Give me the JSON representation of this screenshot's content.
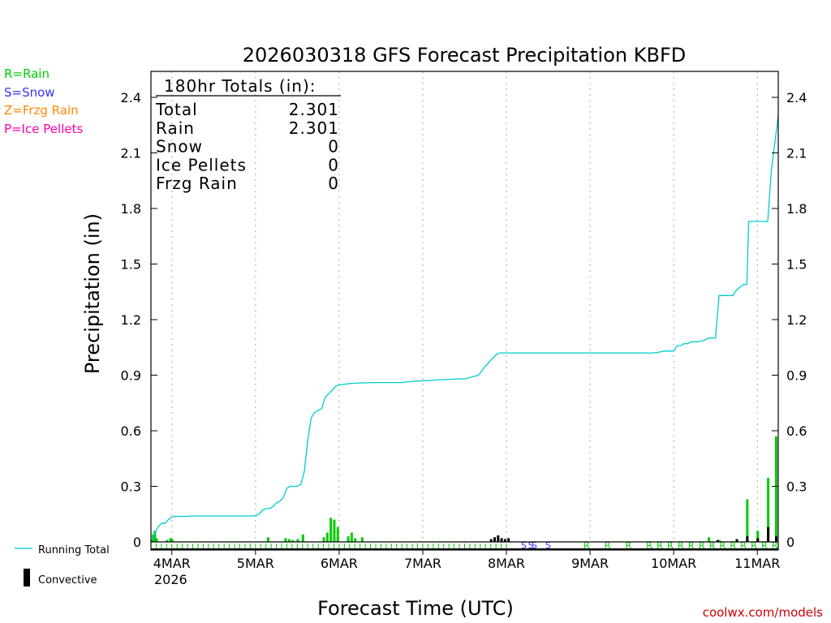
{
  "chart_data": {
    "type": "bar",
    "title": "2026030318 GFS Forecast Precipitation KBFD",
    "xlabel": "Forecast Time (UTC)",
    "ylabel": "Precipitation (in)",
    "ylim": [
      0,
      2.5
    ],
    "yticks": [
      "0",
      "0.3",
      "0.6",
      "0.9",
      "1.2",
      "1.5",
      "1.8",
      "2.1",
      "2.4"
    ],
    "ytick_values": [
      0,
      0.3,
      0.6,
      0.9,
      1.2,
      1.5,
      1.8,
      2.1,
      2.4
    ],
    "xrange_hours": [
      0,
      180
    ],
    "day_ticks": [
      {
        "label": "4MAR",
        "hour": 6
      },
      {
        "label": "5MAR",
        "hour": 30
      },
      {
        "label": "6MAR",
        "hour": 54
      },
      {
        "label": "7MAR",
        "hour": 78
      },
      {
        "label": "8MAR",
        "hour": 102
      },
      {
        "label": "9MAR",
        "hour": 126
      },
      {
        "label": "10MAR",
        "hour": 150
      },
      {
        "label": "11MAR",
        "hour": 174
      }
    ],
    "year_label": "2026",
    "legend": {
      "rain": "R=Rain",
      "snow": "S=Snow",
      "frzg": "Z=Frzg Rain",
      "ice": "P=Ice Pellets",
      "running_total": "Running Total",
      "convective": "Convective"
    },
    "totals": {
      "header": "180hr Totals (in):",
      "rows": [
        {
          "label": "Total",
          "value": "2.301"
        },
        {
          "label": "Rain",
          "value": "2.301"
        },
        {
          "label": "Snow",
          "value": "0"
        },
        {
          "label": "Ice Pellets",
          "value": "0"
        },
        {
          "label": "Frzg Rain",
          "value": "0"
        }
      ]
    },
    "running_total": {
      "hours": [
        0,
        1,
        2,
        3,
        4,
        5,
        6,
        7,
        8,
        10,
        12,
        15,
        20,
        25,
        30,
        31,
        32,
        33,
        34,
        35,
        36,
        37,
        38,
        39,
        40,
        41,
        42,
        43,
        44,
        45,
        46,
        47,
        48,
        49,
        50,
        51,
        52,
        53,
        54,
        55,
        56,
        57,
        58,
        60,
        64,
        68,
        72,
        74,
        76,
        78,
        80,
        82,
        84,
        86,
        88,
        90,
        94,
        96,
        97,
        98,
        99,
        100,
        101,
        102,
        103,
        104,
        108,
        114,
        120,
        126,
        132,
        138,
        144,
        146,
        147,
        150,
        151,
        152,
        153,
        154,
        155,
        156,
        157,
        159,
        160,
        162,
        163,
        165,
        167,
        168,
        170,
        171,
        171.5,
        173,
        174,
        176,
        177,
        178,
        180
      ],
      "values": [
        0.0,
        0.04,
        0.08,
        0.1,
        0.1,
        0.12,
        0.135,
        0.137,
        0.138,
        0.138,
        0.14,
        0.14,
        0.14,
        0.14,
        0.14,
        0.15,
        0.17,
        0.18,
        0.18,
        0.19,
        0.21,
        0.22,
        0.24,
        0.29,
        0.3,
        0.3,
        0.3,
        0.31,
        0.38,
        0.55,
        0.67,
        0.7,
        0.71,
        0.72,
        0.78,
        0.8,
        0.82,
        0.84,
        0.848,
        0.85,
        0.852,
        0.855,
        0.856,
        0.858,
        0.86,
        0.86,
        0.86,
        0.865,
        0.868,
        0.87,
        0.872,
        0.874,
        0.876,
        0.878,
        0.88,
        0.88,
        0.9,
        0.95,
        0.97,
        0.99,
        1.01,
        1.02,
        1.02,
        1.02,
        1.02,
        1.02,
        1.02,
        1.02,
        1.02,
        1.02,
        1.02,
        1.02,
        1.02,
        1.025,
        1.03,
        1.03,
        1.06,
        1.06,
        1.07,
        1.07,
        1.08,
        1.08,
        1.08,
        1.09,
        1.1,
        1.1,
        1.33,
        1.33,
        1.33,
        1.36,
        1.39,
        1.39,
        1.73,
        1.73,
        1.73,
        1.73,
        1.73,
        2.0,
        2.301
      ]
    },
    "rain_bars": [
      {
        "hour": 0.5,
        "value": 0.04
      },
      {
        "hour": 1.0,
        "value": 0.06
      },
      {
        "hour": 1.5,
        "value": 0.02
      },
      {
        "hour": 4.5,
        "value": 0.01
      },
      {
        "hour": 5.5,
        "value": 0.02
      },
      {
        "hour": 6.0,
        "value": 0.015
      },
      {
        "hour": 33.5,
        "value": 0.025
      },
      {
        "hour": 38.5,
        "value": 0.02
      },
      {
        "hour": 39.5,
        "value": 0.015
      },
      {
        "hour": 40.5,
        "value": 0.01
      },
      {
        "hour": 42.0,
        "value": 0.015
      },
      {
        "hour": 43.5,
        "value": 0.04
      },
      {
        "hour": 49.5,
        "value": 0.025
      },
      {
        "hour": 50.5,
        "value": 0.05
      },
      {
        "hour": 51.5,
        "value": 0.13
      },
      {
        "hour": 52.5,
        "value": 0.12
      },
      {
        "hour": 53.5,
        "value": 0.08
      },
      {
        "hour": 56.5,
        "value": 0.03
      },
      {
        "hour": 57.5,
        "value": 0.05
      },
      {
        "hour": 58.5,
        "value": 0.02
      },
      {
        "hour": 60.5,
        "value": 0.025
      },
      {
        "hour": 160.0,
        "value": 0.025
      },
      {
        "hour": 163.0,
        "value": 0.01
      },
      {
        "hour": 171.0,
        "value": 0.23
      },
      {
        "hour": 174.0,
        "value": 0.06
      },
      {
        "hour": 177.0,
        "value": 0.345
      },
      {
        "hour": 180.0,
        "value": 0.57
      }
    ],
    "convective_bars": [
      {
        "hour": 97.5,
        "value": 0.015
      },
      {
        "hour": 98.5,
        "value": 0.025
      },
      {
        "hour": 99.5,
        "value": 0.035
      },
      {
        "hour": 100.5,
        "value": 0.02
      },
      {
        "hour": 101.5,
        "value": 0.015
      },
      {
        "hour": 102.5,
        "value": 0.02
      },
      {
        "hour": 162.5,
        "value": 0.01
      },
      {
        "hour": 168.0,
        "value": 0.015
      },
      {
        "hour": 171.0,
        "value": 0.03
      },
      {
        "hour": 174.0,
        "value": 0.02
      },
      {
        "hour": 177.0,
        "value": 0.08
      },
      {
        "hour": 180.0,
        "value": 0.03
      }
    ],
    "ptype_markers": [
      {
        "hour": 125,
        "type": "R"
      },
      {
        "hour": 131,
        "type": "R"
      },
      {
        "hour": 137,
        "type": "R"
      },
      {
        "hour": 143,
        "type": "R"
      },
      {
        "hour": 146,
        "type": "R"
      },
      {
        "hour": 149,
        "type": "R"
      },
      {
        "hour": 152,
        "type": "R"
      },
      {
        "hour": 155,
        "type": "R"
      },
      {
        "hour": 158,
        "type": "R"
      },
      {
        "hour": 161,
        "type": "R"
      },
      {
        "hour": 164,
        "type": "R"
      },
      {
        "hour": 167,
        "type": "R"
      },
      {
        "hour": 170,
        "type": "R"
      },
      {
        "hour": 173,
        "type": "R"
      },
      {
        "hour": 176,
        "type": "R"
      },
      {
        "hour": 179,
        "type": "R"
      },
      {
        "hour": 107,
        "type": "S"
      },
      {
        "hour": 109,
        "type": "S"
      },
      {
        "hour": 110,
        "type": "S"
      },
      {
        "hour": 114,
        "type": "S"
      }
    ],
    "colors": {
      "rain": "#00cc00",
      "snow": "#3333ff",
      "frzg": "#ff8800",
      "ice": "#ff00aa",
      "running_total": "#00cccc",
      "convective": "#000000",
      "axis": "#000000",
      "grid": "#aaaaaa",
      "credit": "#cc0000"
    }
  },
  "credit": "coolwx.com/models"
}
